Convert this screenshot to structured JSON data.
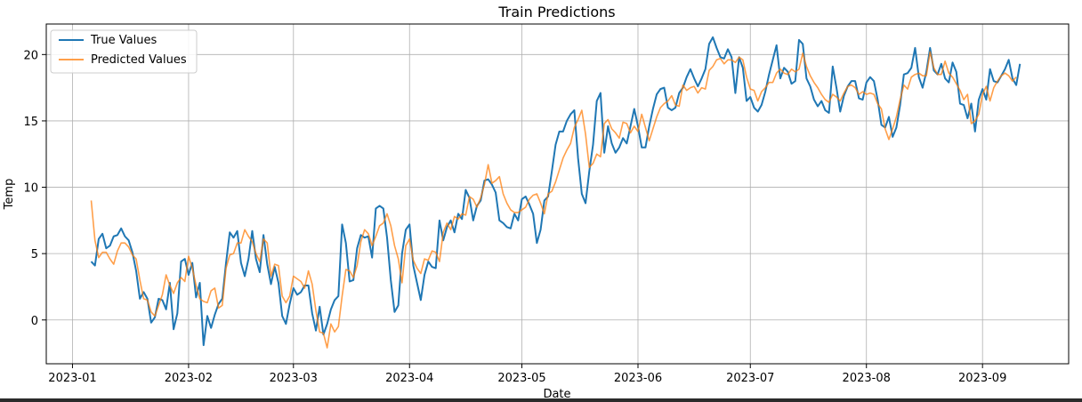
{
  "chart_data": {
    "type": "line",
    "title": "Train Predictions",
    "xlabel": "Date",
    "ylabel": "Temp",
    "x_start": "2023-01-06",
    "xlim": [
      "2022-12-25",
      "2023-09-24"
    ],
    "ylim": [
      -3.3,
      22.3
    ],
    "x_ticks": [
      "2023-01",
      "2023-02",
      "2023-03",
      "2023-04",
      "2023-05",
      "2023-06",
      "2023-07",
      "2023-08",
      "2023-09"
    ],
    "y_ticks": [
      0,
      5,
      10,
      15,
      20
    ],
    "grid": true,
    "legend_position": "top-left",
    "series": [
      {
        "name": "True Values",
        "color": "#1f77b4",
        "values": [
          4.4,
          4.1,
          6.1,
          6.5,
          5.4,
          5.6,
          6.3,
          6.4,
          6.9,
          6.3,
          6.0,
          5.1,
          3.7,
          1.6,
          2.1,
          1.6,
          -0.2,
          0.2,
          1.6,
          1.5,
          0.8,
          2.8,
          -0.7,
          0.5,
          4.4,
          4.6,
          3.4,
          4.3,
          1.7,
          2.8,
          -1.9,
          0.3,
          -0.6,
          0.4,
          1.2,
          1.6,
          4.3,
          6.6,
          6.2,
          6.7,
          4.3,
          3.3,
          4.6,
          6.7,
          4.6,
          3.6,
          6.4,
          4.2,
          2.7,
          4.0,
          2.8,
          0.3,
          -0.3,
          1.2,
          2.4,
          1.9,
          2.1,
          2.6,
          2.6,
          0.5,
          -0.8,
          1.0,
          -1.1,
          -0.3,
          0.8,
          1.5,
          1.8,
          7.2,
          5.8,
          2.9,
          3.0,
          5.4,
          6.4,
          6.2,
          6.3,
          4.7,
          8.4,
          8.6,
          8.4,
          6.2,
          3.0,
          0.6,
          1.1,
          5.0,
          6.8,
          7.2,
          4.1,
          2.8,
          1.5,
          3.4,
          4.4,
          4.0,
          3.9,
          7.5,
          6.0,
          7.0,
          7.5,
          6.6,
          8.0,
          7.6,
          9.8,
          9.2,
          7.5,
          8.6,
          9.0,
          10.5,
          10.6,
          10.2,
          9.6,
          7.5,
          7.3,
          7.0,
          6.9,
          8.0,
          7.5,
          9.1,
          9.3,
          8.7,
          8.0,
          5.8,
          6.8,
          9.0,
          9.3,
          11.2,
          13.2,
          14.2,
          14.2,
          15.0,
          15.5,
          15.8,
          12.2,
          9.5,
          8.8,
          11.2,
          13.2,
          16.5,
          17.1,
          12.6,
          14.6,
          13.3,
          12.6,
          13.0,
          13.7,
          13.3,
          14.6,
          15.9,
          14.6,
          13.0,
          13.0,
          14.6,
          15.9,
          17.0,
          17.4,
          17.5,
          16.0,
          15.8,
          16.0,
          17.1,
          17.5,
          18.3,
          18.9,
          18.2,
          17.6,
          18.2,
          18.9,
          20.8,
          21.3,
          20.5,
          19.8,
          19.7,
          20.4,
          19.8,
          17.1,
          19.8,
          19.0,
          16.5,
          16.8,
          16.0,
          15.7,
          16.2,
          17.2,
          18.5,
          19.6,
          20.7,
          18.2,
          19.0,
          18.7,
          17.8,
          18.0,
          21.1,
          20.8,
          18.2,
          17.6,
          16.6,
          16.1,
          16.5,
          15.8,
          15.6,
          19.1,
          17.5,
          15.7,
          16.9,
          17.6,
          18.0,
          18.0,
          16.7,
          16.6,
          17.9,
          18.3,
          18.0,
          16.6,
          14.7,
          14.5,
          15.3,
          13.8,
          14.5,
          16.2,
          18.5,
          18.6,
          19.0,
          20.5,
          18.3,
          17.5,
          18.7,
          20.5,
          18.8,
          18.5,
          19.3,
          18.2,
          17.9,
          19.4,
          18.7,
          16.3,
          16.2,
          15.2,
          16.3,
          14.2,
          16.6,
          17.4,
          16.6,
          18.9,
          18.0,
          17.9,
          18.4,
          18.9,
          19.6,
          18.2,
          17.7,
          19.3
        ]
      },
      {
        "name": "Predicted Values",
        "color": "#ff7f0e",
        "values": [
          9.0,
          6.0,
          4.7,
          5.1,
          5.1,
          4.6,
          4.2,
          5.2,
          5.8,
          5.8,
          5.5,
          4.9,
          4.6,
          3.0,
          1.6,
          1.5,
          0.6,
          0.3,
          1.1,
          1.9,
          3.4,
          2.6,
          2.0,
          2.8,
          3.2,
          2.9,
          4.8,
          3.9,
          2.6,
          1.6,
          1.4,
          1.3,
          2.2,
          2.4,
          0.9,
          1.1,
          3.9,
          4.9,
          5.0,
          5.8,
          5.8,
          6.8,
          6.3,
          5.9,
          5.0,
          4.4,
          6.1,
          5.8,
          3.3,
          4.2,
          4.1,
          1.8,
          1.3,
          1.8,
          3.3,
          3.1,
          2.9,
          2.4,
          3.7,
          2.7,
          0.7,
          -0.9,
          -1.0,
          -2.1,
          -0.3,
          -0.9,
          -0.5,
          1.8,
          3.8,
          3.7,
          3.2,
          4.1,
          5.9,
          6.8,
          6.5,
          5.6,
          6.3,
          7.1,
          7.3,
          8.0,
          7.1,
          5.6,
          4.6,
          2.8,
          5.6,
          6.1,
          4.5,
          3.9,
          3.5,
          4.6,
          4.5,
          5.2,
          5.1,
          4.4,
          6.6,
          7.3,
          6.8,
          7.8,
          7.6,
          8.0,
          7.9,
          9.3,
          9.1,
          8.5,
          9.2,
          10.2,
          11.7,
          10.3,
          10.5,
          10.8,
          9.5,
          8.8,
          8.3,
          8.1,
          8.1,
          8.3,
          8.5,
          9.1,
          9.4,
          9.5,
          8.8,
          8.0,
          9.5,
          9.7,
          10.4,
          11.3,
          12.2,
          12.8,
          13.3,
          14.5,
          15.1,
          15.8,
          14.0,
          11.5,
          11.8,
          12.5,
          12.3,
          14.8,
          15.1,
          14.4,
          14.1,
          13.7,
          14.9,
          14.8,
          14.1,
          14.6,
          14.2,
          15.5,
          14.5,
          13.5,
          14.4,
          15.3,
          16.0,
          16.3,
          16.5,
          16.9,
          16.2,
          16.1,
          17.7,
          17.3,
          17.5,
          17.6,
          17.1,
          17.5,
          17.4,
          18.8,
          19.1,
          19.6,
          19.7,
          19.3,
          19.6,
          19.6,
          19.4,
          19.8,
          19.6,
          18.3,
          17.4,
          17.3,
          16.5,
          17.2,
          17.5,
          17.9,
          17.9,
          18.6,
          18.9,
          18.6,
          18.5,
          18.9,
          18.7,
          18.9,
          20.1,
          19.1,
          18.4,
          17.9,
          17.5,
          17.0,
          16.6,
          16.4,
          17.0,
          16.8,
          16.5,
          17.1,
          17.6,
          17.7,
          17.5,
          17.0,
          17.2,
          17.0,
          17.1,
          17.0,
          16.3,
          15.9,
          14.4,
          13.6,
          14.4,
          15.3,
          16.6,
          17.7,
          17.4,
          18.3,
          18.5,
          18.6,
          18.4,
          18.4,
          20.2,
          19.0,
          18.5,
          18.5,
          19.5,
          18.6,
          18.3,
          17.8,
          17.3,
          16.6,
          17.0,
          14.8,
          15.0,
          15.5,
          17.0,
          17.6,
          16.5,
          17.5,
          18.0,
          18.4,
          18.6,
          18.4,
          18.0,
          18.3
        ]
      }
    ]
  }
}
